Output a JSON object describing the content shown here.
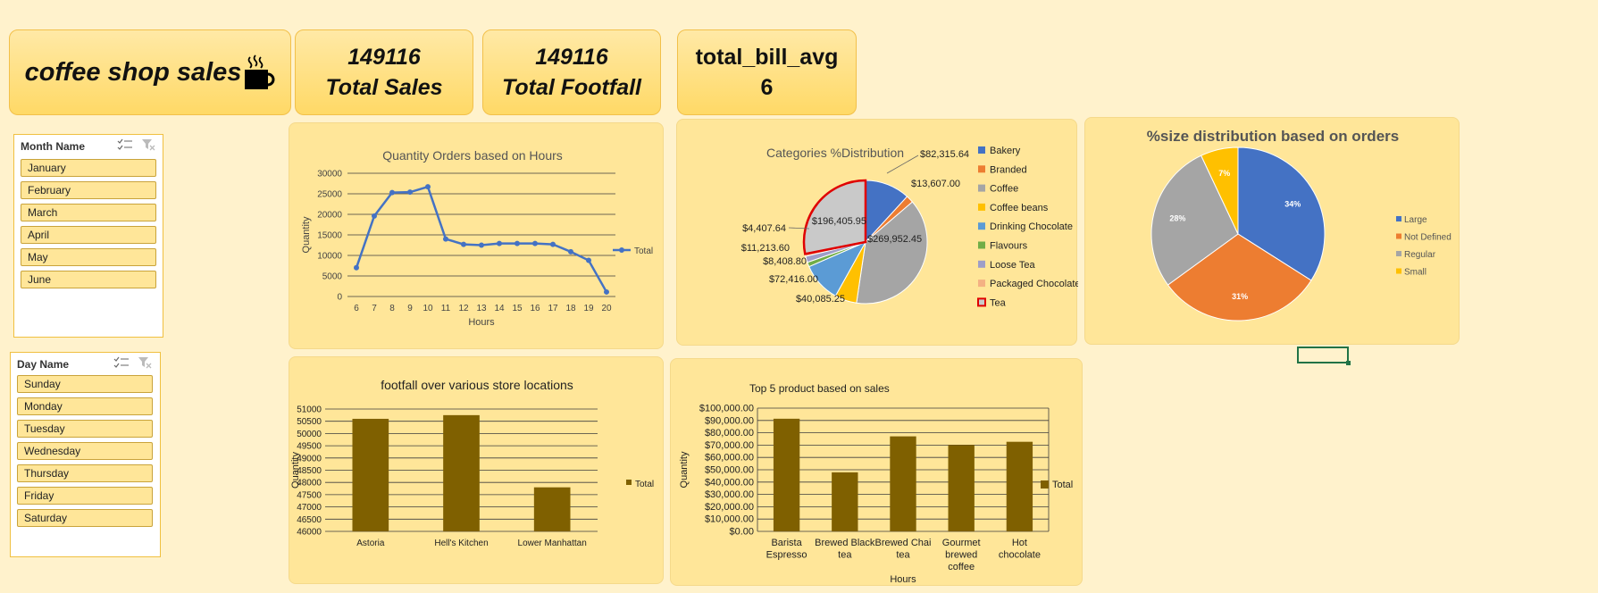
{
  "header": {
    "title": "coffee shop sales",
    "kpis": [
      {
        "value": "149116",
        "label": "Total Sales"
      },
      {
        "value": "149116",
        "label": "Total Footfall"
      },
      {
        "value": "total_bill_avg",
        "label": "6"
      }
    ]
  },
  "slicers": {
    "month": {
      "title": "Month Name",
      "items": [
        "January",
        "February",
        "March",
        "April",
        "May",
        "June"
      ]
    },
    "day": {
      "title": "Day Name",
      "items": [
        "Sunday",
        "Monday",
        "Tuesday",
        "Wednesday",
        "Thursday",
        "Friday",
        "Saturday"
      ]
    }
  },
  "colors": {
    "line": "#4472c4",
    "bar": "#7f6000",
    "pie": [
      "#4472c4",
      "#ed7d31",
      "#a5a5a5",
      "#ffc000",
      "#5b9bd5",
      "#70ad47",
      "#9e9ec8",
      "#f4b183",
      "#c9c9c9"
    ]
  },
  "chart_data": [
    {
      "id": "hours",
      "type": "line",
      "title": "Quantity Orders based on Hours",
      "xlabel": "Hours",
      "ylabel": "Quantity",
      "x": [
        "6",
        "7",
        "8",
        "9",
        "10",
        "11",
        "12",
        "13",
        "14",
        "15",
        "16",
        "17",
        "18",
        "19",
        "20"
      ],
      "series": [
        {
          "name": "Total",
          "values": [
            7000,
            19600,
            25300,
            25400,
            26700,
            14000,
            12700,
            12500,
            12900,
            12900,
            12900,
            12700,
            10900,
            8800,
            1100
          ]
        }
      ],
      "ylim": [
        0,
        30000
      ],
      "yticks": [
        "0",
        "5000",
        "10000",
        "15000",
        "20000",
        "25000",
        "30000"
      ],
      "grid": true,
      "legend": "right"
    },
    {
      "id": "categories",
      "type": "pie",
      "title": "Categories %Distribution",
      "categories": [
        "Bakery",
        "Branded",
        "Coffee",
        "Coffee beans",
        "Drinking Chocolate",
        "Flavours",
        "Loose Tea",
        "Packaged Chocolate",
        "Tea"
      ],
      "values": [
        82315.64,
        13607.0,
        269952.45,
        40085.25,
        72416.0,
        8408.8,
        11213.6,
        4407.64,
        196405.95
      ],
      "labels": [
        "$82,315.64",
        "$13,607.00",
        "$269,952.45",
        "$40,085.25",
        "$72,416.00",
        "$8,408.80",
        "$11,213.60",
        "$4,407.64",
        "$196,405.95"
      ],
      "highlighted": "Tea",
      "legend": "right"
    },
    {
      "id": "size",
      "type": "pie",
      "title": "%size distribution based on orders",
      "categories": [
        "Large",
        "Not Defined",
        "Regular",
        "Small"
      ],
      "values": [
        34,
        31,
        28,
        7
      ],
      "labels": [
        "34%",
        "31%",
        "28%",
        "7%"
      ],
      "legend": "right"
    },
    {
      "id": "footfall",
      "type": "bar",
      "title": "footfall over various store locations",
      "ylabel": "Quantity",
      "categories": [
        "Astoria",
        "Hell's Kitchen",
        "Lower Manhattan"
      ],
      "series": [
        {
          "name": "Total",
          "values": [
            50600,
            50750,
            47800
          ]
        }
      ],
      "ylim": [
        46000,
        51000
      ],
      "yticks": [
        "46000",
        "46500",
        "47000",
        "47500",
        "48000",
        "48500",
        "49000",
        "49500",
        "50000",
        "50500",
        "51000"
      ],
      "legend": "right"
    },
    {
      "id": "top5",
      "type": "bar",
      "title": "Top 5 product based on sales",
      "xlabel": "Hours",
      "ylabel": "Quantity",
      "categories": [
        "Barista Espresso",
        "Brewed Black tea",
        "Brewed Chai tea",
        "Gourmet brewed coffee",
        "Hot chocolate"
      ],
      "category_lines": [
        [
          "Barista",
          "Espresso"
        ],
        [
          "Brewed Black",
          "tea"
        ],
        [
          "Brewed Chai",
          "tea"
        ],
        [
          "Gourmet",
          "brewed",
          "coffee"
        ],
        [
          "Hot",
          "chocolate"
        ]
      ],
      "series": [
        {
          "name": "Total",
          "values": [
            91400,
            47900,
            77100,
            70100,
            72700
          ]
        }
      ],
      "ylim": [
        0,
        100000
      ],
      "yticks": [
        "$0.00",
        "$10,000.00",
        "$20,000.00",
        "$30,000.00",
        "$40,000.00",
        "$50,000.00",
        "$60,000.00",
        "$70,000.00",
        "$80,000.00",
        "$90,000.00",
        "$100,000.00"
      ],
      "legend": "right"
    }
  ]
}
